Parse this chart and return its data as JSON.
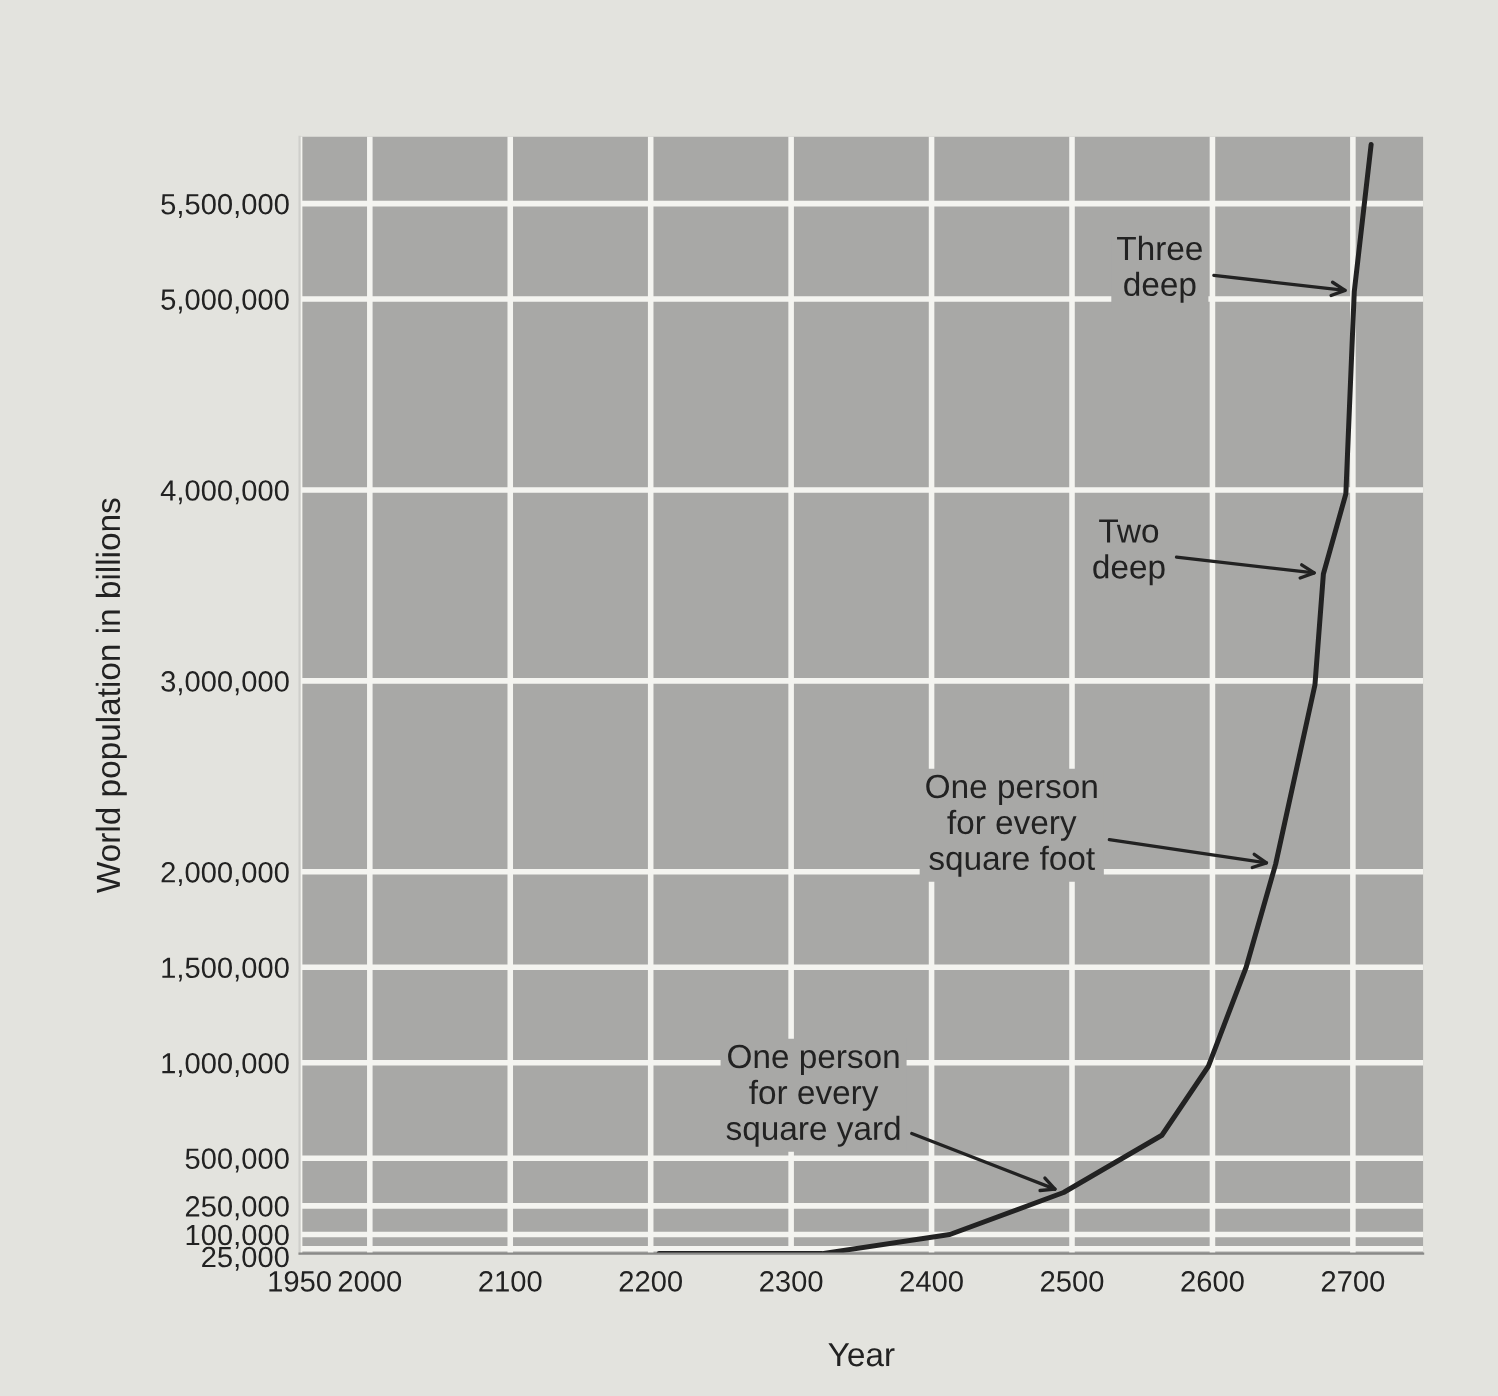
{
  "chart_data": {
    "type": "line",
    "xlabel": "Year",
    "ylabel": "World population in billions",
    "x": [
      2206,
      2322,
      2413,
      2494,
      2564,
      2597,
      2624,
      2645,
      2673,
      2679,
      2695,
      2701,
      2713
    ],
    "series": [
      {
        "color": "#222222",
        "values": [
          0,
          0,
          100000,
          320000,
          620000,
          980000,
          1500000,
          2040000,
          2980000,
          3560000,
          3980000,
          5040000,
          5810000
        ]
      }
    ],
    "xlim": [
      1950,
      2750
    ],
    "xticks": [
      1950,
      2000,
      2100,
      2200,
      2300,
      2400,
      2500,
      2600,
      2700
    ],
    "ylim": [
      0,
      5850000
    ],
    "yticks": [
      {
        "value": 25000,
        "label": "25,000"
      },
      {
        "value": 100000,
        "label": "100,000"
      },
      {
        "value": 250000,
        "label": "250,000"
      },
      {
        "value": 500000,
        "label": "500,000"
      },
      {
        "value": 1000000,
        "label": "1,000,000"
      },
      {
        "value": 1500000,
        "label": "1,500,000"
      },
      {
        "value": 2000000,
        "label": "2,000,000"
      },
      {
        "value": 3000000,
        "label": "3,000,000"
      },
      {
        "value": 4000000,
        "label": "4,000,000"
      },
      {
        "value": 5000000,
        "label": "5,000,000"
      },
      {
        "value": 5500000,
        "label": "5,500,000"
      }
    ],
    "grid": true,
    "marker": "none",
    "line_style": "solid",
    "legend": false,
    "annotations": [
      {
        "text": "Three\ndeep",
        "x": 2701,
        "y": 5040000
      },
      {
        "text": "Two\ndeep",
        "x": 2679,
        "y": 3560000
      },
      {
        "text": "One person\nfor every\nsquare foot",
        "x": 2645,
        "y": 2040000
      },
      {
        "text": "One person\nfor every\nsquare yard",
        "x": 2494,
        "y": 320000
      }
    ]
  }
}
